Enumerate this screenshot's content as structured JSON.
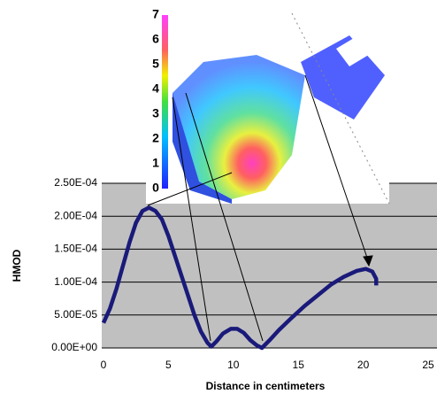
{
  "chart_data": {
    "type": "line",
    "y_label": "HMOD",
    "x_label": "Distance in centimeters",
    "xlim": [
      0,
      25
    ],
    "xticks": [
      0,
      5,
      10,
      15,
      20,
      25
    ],
    "ylim": [
      0,
      0.00025
    ],
    "yticks": [
      {
        "value": 0,
        "label": "0.00E+00"
      },
      {
        "value": 5e-05,
        "label": "5.00E-05"
      },
      {
        "value": 0.0001,
        "label": "1.00E-04"
      },
      {
        "value": 0.00015,
        "label": "1.50E-04"
      },
      {
        "value": 0.0002,
        "label": "2.00E-04"
      },
      {
        "value": 0.00025,
        "label": "2.50E-04"
      }
    ],
    "grid": true,
    "color": "#1a1a7a",
    "x": [
      0,
      0.5,
      1,
      1.5,
      2,
      2.5,
      3,
      3.5,
      4,
      4.5,
      5,
      5.5,
      6,
      6.5,
      7,
      7.5,
      8,
      8.3,
      8.7,
      9.2,
      9.8,
      10.3,
      10.8,
      11.3,
      11.8,
      12.2,
      12.8,
      13.5,
      14.5,
      15.5,
      16.5,
      17.5,
      18.5,
      19.5,
      20.2,
      20.7,
      21,
      21
    ],
    "values": [
      3.8e-05,
      6e-05,
      9e-05,
      0.000125,
      0.00016,
      0.00019,
      0.000208,
      0.000213,
      0.000208,
      0.000195,
      0.00017,
      0.00014,
      0.00011,
      8e-05,
      5e-05,
      2.5e-05,
      8e-06,
      2e-06,
      1e-05,
      2.2e-05,
      2.9e-05,
      2.9e-05,
      2.3e-05,
      1.2e-05,
      4e-06,
      0,
      1.2e-05,
      2.7e-05,
      4.6e-05,
      6.4e-05,
      8e-05,
      9.6e-05,
      0.000108,
      0.000117,
      0.00012,
      0.000116,
      0.000105,
      9.5e-05
    ],
    "colorbar_ticks": [
      0,
      1,
      2,
      3,
      4,
      5,
      6,
      7
    ]
  }
}
